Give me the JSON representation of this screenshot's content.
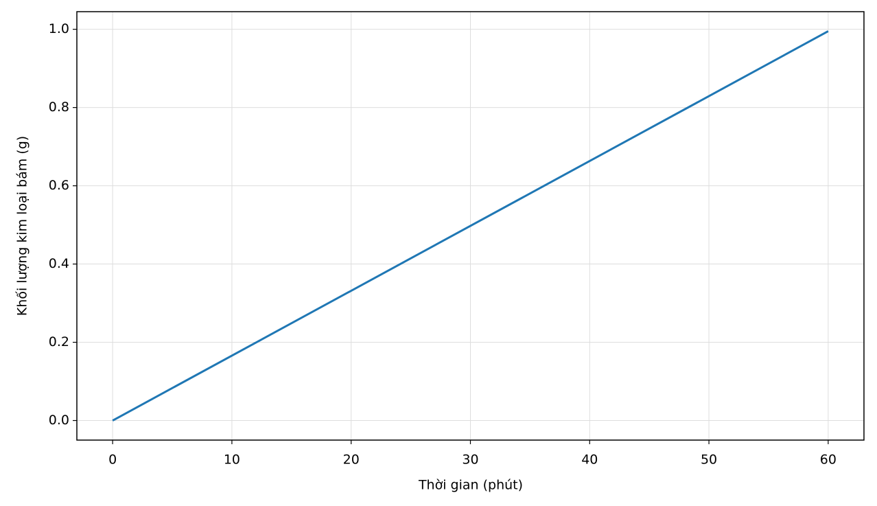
{
  "chart_data": {
    "type": "line",
    "x_label": "Thời gian (phút)",
    "y_label": "Khối lượng kim loại bám (g)",
    "x": [
      0,
      60
    ],
    "series": [
      {
        "color": "#1f77b4",
        "values": [
          0,
          0.995
        ]
      }
    ],
    "xlim": [
      -3,
      63
    ],
    "xticks": [
      0,
      10,
      20,
      30,
      40,
      50,
      60
    ],
    "ylim": [
      -0.05,
      1.045
    ],
    "yticks": [
      {
        "value": 0,
        "label": "0.0"
      },
      0.2,
      0.4,
      0.6,
      0.8,
      {
        "value": 1,
        "label": "1.0"
      }
    ],
    "grid": true
  }
}
